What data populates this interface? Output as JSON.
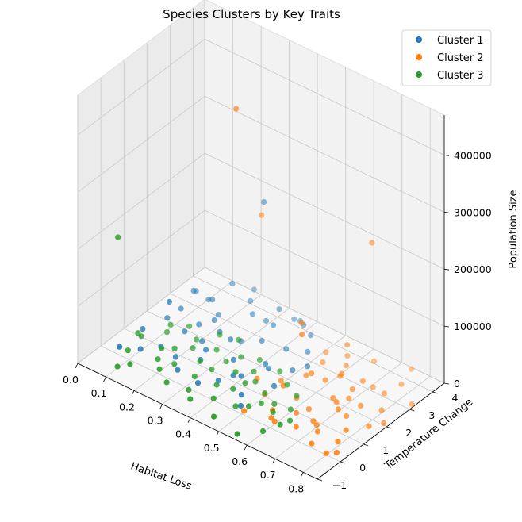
{
  "chart_data": {
    "type": "scatter3d",
    "title": "Species Clusters by Key Traits",
    "xlabel": "Habitat Loss",
    "ylabel": "Temperature Change",
    "zlabel": "Population Size",
    "xlim": [
      0.0,
      0.85
    ],
    "ylim": [
      -1,
      4.5
    ],
    "zlim": [
      0,
      470000
    ],
    "xticks": [
      "0.0",
      "0.1",
      "0.2",
      "0.3",
      "0.4",
      "0.5",
      "0.6",
      "0.7",
      "0.8"
    ],
    "yticks": [
      "−1",
      "0",
      "1",
      "2",
      "3",
      "4"
    ],
    "zticks": [
      "0",
      "100000",
      "200000",
      "300000",
      "400000"
    ],
    "grid": true,
    "legend_position": "top-right",
    "colors": {
      "Cluster 1": "#1f77b4",
      "Cluster 2": "#ff7f0e",
      "Cluster 3": "#2ca02c"
    },
    "series": [
      {
        "name": "Cluster 1",
        "color": "#1f77b4",
        "points": [
          [
            0.05,
            1.2,
            5000
          ],
          [
            0.08,
            2.5,
            8000
          ],
          [
            0.1,
            0.5,
            3000
          ],
          [
            0.12,
            3.2,
            12000
          ],
          [
            0.15,
            1.8,
            6000
          ],
          [
            0.18,
            2.9,
            9000
          ],
          [
            0.2,
            0.8,
            4000
          ],
          [
            0.22,
            3.8,
            15000
          ],
          [
            0.25,
            1.5,
            7000
          ],
          [
            0.28,
            2.2,
            11000
          ],
          [
            0.3,
            3.5,
            8500
          ],
          [
            0.32,
            0.3,
            2500
          ],
          [
            0.35,
            2.7,
            10000
          ],
          [
            0.38,
            1.1,
            5500
          ],
          [
            0.4,
            3.9,
            13000
          ],
          [
            0.42,
            2.0,
            7500
          ],
          [
            0.45,
            0.6,
            3500
          ],
          [
            0.48,
            3.1,
            9500
          ],
          [
            0.5,
            1.4,
            6500
          ],
          [
            0.52,
            2.6,
            8800
          ],
          [
            0.12,
            1.5,
            60000
          ],
          [
            0.18,
            3.5,
            45000
          ],
          [
            0.25,
            2.1,
            20000
          ],
          [
            0.15,
            3.0,
            25000
          ],
          [
            0.33,
            3.7,
            30000
          ],
          [
            0.2,
            4.2,
            18000
          ],
          [
            0.08,
            1.9,
            10000
          ],
          [
            0.28,
            0.9,
            15000
          ],
          [
            0.1,
            2.8,
            35000
          ],
          [
            0.35,
            3.2,
            22000
          ],
          [
            0.45,
            3.6,
            16000
          ],
          [
            0.22,
            1.7,
            9000
          ],
          [
            0.05,
            0.2,
            4000
          ],
          [
            0.38,
            4.0,
            12000
          ],
          [
            0.3,
            2.4,
            7000
          ],
          [
            0.16,
            2.3,
            5500
          ],
          [
            0.26,
            3.4,
            14000
          ],
          [
            0.42,
            2.9,
            6000
          ],
          [
            0.14,
            0.9,
            4500
          ],
          [
            0.34,
            1.6,
            8000
          ],
          [
            0.06,
            3.4,
            6500
          ],
          [
            0.24,
            0.4,
            3000
          ],
          [
            0.44,
            1.9,
            7000
          ],
          [
            0.19,
            2.6,
            11000
          ],
          [
            0.36,
            0.7,
            4000
          ],
          [
            0.3,
            3.4,
            220000
          ],
          [
            0.35,
            4.1,
            5000
          ],
          [
            0.4,
            1.2,
            6000
          ],
          [
            0.5,
            2.2,
            9500
          ],
          [
            0.48,
            0.2,
            3500
          ]
        ]
      },
      {
        "name": "Cluster 2",
        "color": "#ff7f0e",
        "points": [
          [
            0.3,
            2.2,
            420000
          ],
          [
            0.7,
            3.2,
            250000
          ],
          [
            0.3,
            3.3,
            200000
          ],
          [
            0.55,
            2.0,
            90000
          ],
          [
            0.5,
            2.6,
            80000
          ],
          [
            0.62,
            3.1,
            55000
          ],
          [
            0.6,
            1.8,
            40000
          ],
          [
            0.65,
            2.5,
            30000
          ],
          [
            0.55,
            1.2,
            25000
          ],
          [
            0.7,
            2.8,
            20000
          ],
          [
            0.72,
            1.5,
            15000
          ],
          [
            0.75,
            2.1,
            10000
          ],
          [
            0.8,
            0.5,
            8000
          ],
          [
            0.82,
            1.6,
            6000
          ],
          [
            0.78,
            3.5,
            12000
          ],
          [
            0.6,
            0.2,
            5000
          ],
          [
            0.65,
            3.9,
            9000
          ],
          [
            0.7,
            0.8,
            4000
          ],
          [
            0.75,
            4.3,
            7000
          ],
          [
            0.58,
            3.6,
            11000
          ],
          [
            0.62,
            0.9,
            3000
          ],
          [
            0.68,
            1.9,
            6000
          ],
          [
            0.72,
            3.0,
            8000
          ],
          [
            0.8,
            2.4,
            5000
          ],
          [
            0.55,
            2.9,
            14000
          ],
          [
            0.6,
            2.4,
            10000
          ],
          [
            0.5,
            1.7,
            6500
          ],
          [
            0.52,
            3.4,
            9000
          ],
          [
            0.58,
            1.4,
            4500
          ],
          [
            0.66,
            0.4,
            3500
          ],
          [
            0.74,
            0.1,
            2500
          ],
          [
            0.78,
            1.1,
            5000
          ],
          [
            0.84,
            2.0,
            4000
          ],
          [
            0.85,
            3.1,
            6000
          ],
          [
            0.56,
            0.6,
            3000
          ],
          [
            0.64,
            1.2,
            5500
          ],
          [
            0.7,
            2.2,
            7500
          ],
          [
            0.76,
            3.0,
            6500
          ],
          [
            0.62,
            2.8,
            9500
          ],
          [
            0.54,
            2.3,
            7000
          ],
          [
            0.6,
            3.3,
            8200
          ],
          [
            0.5,
            1.0,
            4000
          ],
          [
            0.68,
            0.9,
            3200
          ],
          [
            0.74,
            1.6,
            4800
          ],
          [
            0.66,
            2.0,
            5200
          ],
          [
            0.82,
            0.2,
            2800
          ],
          [
            0.8,
            0.0,
            3000
          ],
          [
            0.5,
            0.1,
            2500
          ],
          [
            0.58,
            0.3,
            3100
          ],
          [
            0.72,
            0.6,
            3400
          ],
          [
            0.68,
            2.6,
            6800
          ],
          [
            0.44,
            1.4,
            5000
          ]
        ]
      },
      {
        "name": "Cluster 3",
        "color": "#2ca02c",
        "points": [
          [
            0.02,
            0.5,
            180000
          ],
          [
            0.08,
            0.2,
            5000
          ],
          [
            0.1,
            -0.5,
            3000
          ],
          [
            0.15,
            0.8,
            7000
          ],
          [
            0.12,
            1.4,
            10000
          ],
          [
            0.2,
            0.1,
            4000
          ],
          [
            0.18,
            1.0,
            8000
          ],
          [
            0.25,
            -0.2,
            2000
          ],
          [
            0.22,
            1.3,
            9000
          ],
          [
            0.3,
            0.4,
            6000
          ],
          [
            0.28,
            1.6,
            11000
          ],
          [
            0.35,
            -0.4,
            2500
          ],
          [
            0.32,
            0.9,
            7500
          ],
          [
            0.4,
            0.0,
            3500
          ],
          [
            0.38,
            1.2,
            8500
          ],
          [
            0.45,
            -0.6,
            2000
          ],
          [
            0.42,
            1.5,
            9500
          ],
          [
            0.5,
            0.3,
            4500
          ],
          [
            0.48,
            1.9,
            12000
          ],
          [
            0.55,
            -0.8,
            1500
          ],
          [
            0.52,
            0.6,
            5000
          ],
          [
            0.6,
            -0.3,
            3000
          ],
          [
            0.58,
            1.4,
            8000
          ],
          [
            0.62,
            0.2,
            4000
          ],
          [
            0.25,
            2.1,
            15000
          ],
          [
            0.1,
            1.8,
            6000
          ],
          [
            0.05,
            1.0,
            4000
          ],
          [
            0.15,
            2.0,
            9000
          ],
          [
            0.3,
            2.3,
            12000
          ],
          [
            0.4,
            2.0,
            10000
          ],
          [
            0.35,
            1.8,
            9000
          ],
          [
            0.2,
            1.7,
            7000
          ],
          [
            0.45,
            1.2,
            8000
          ],
          [
            0.5,
            1.0,
            6000
          ],
          [
            0.55,
            0.8,
            5000
          ],
          [
            0.6,
            0.9,
            4500
          ],
          [
            0.12,
            -0.2,
            3000
          ],
          [
            0.22,
            0.5,
            5500
          ],
          [
            0.32,
            -0.1,
            2500
          ],
          [
            0.42,
            0.6,
            6500
          ],
          [
            0.27,
            1.0,
            7000
          ],
          [
            0.37,
            0.5,
            5000
          ],
          [
            0.47,
            0.1,
            3500
          ],
          [
            0.57,
            0.5,
            4800
          ],
          [
            0.17,
            0.4,
            5200
          ],
          [
            0.07,
            0.9,
            6200
          ],
          [
            0.33,
            1.4,
            8800
          ],
          [
            0.43,
            1.0,
            7200
          ],
          [
            0.53,
            1.6,
            9600
          ],
          [
            0.63,
            0.5,
            4200
          ]
        ]
      }
    ]
  }
}
